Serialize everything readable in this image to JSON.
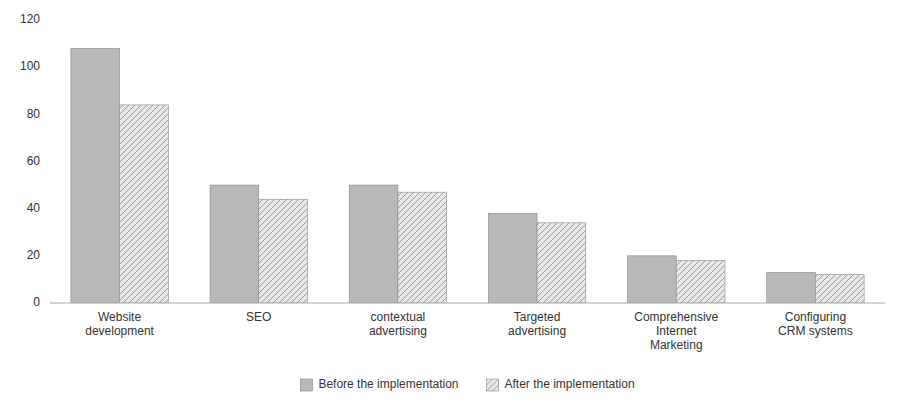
{
  "chart_data": {
    "type": "bar",
    "categories": [
      "Website\ndevelopment",
      "SEO",
      "contextual\nadvertising",
      "Targeted\nadvertising",
      "Comprehensive\nInternet\nMarketing",
      "Configuring\nCRM systems"
    ],
    "series": [
      {
        "name": "Before the implementation",
        "color": "#b8b8b8",
        "values": [
          108,
          50,
          50,
          38,
          20,
          13
        ]
      },
      {
        "name": "After the implementation",
        "color": "#e8e8e8",
        "values": [
          84,
          44,
          47,
          34,
          18,
          12
        ]
      }
    ],
    "ylim": [
      0,
      120
    ],
    "yticks": [
      0,
      20,
      40,
      60,
      80,
      100,
      120
    ],
    "grid": false,
    "legend": "bottom"
  }
}
